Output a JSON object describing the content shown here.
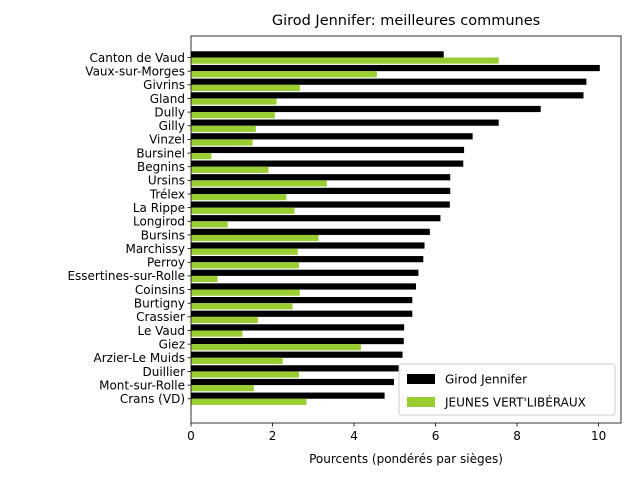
{
  "chart_data": {
    "type": "bar",
    "orientation": "horizontal",
    "title": "Girod Jennifer: meilleures communes",
    "xlabel": "Pourcents (pondérés par sièges)",
    "ylabel": "",
    "xlim": [
      0,
      10.55
    ],
    "xticks": [
      0,
      2,
      4,
      6,
      8,
      10
    ],
    "grid": false,
    "legend_position": "lower-right",
    "categories": [
      "Canton de Vaud",
      "Vaux-sur-Morges",
      "Givrins",
      "Gland",
      "Dully",
      "Gilly",
      "Vinzel",
      "Bursinel",
      "Begnins",
      "Ursins",
      "Trélex",
      "La Rippe",
      "Longirod",
      "Bursins",
      "Marchissy",
      "Perroy",
      "Essertines-sur-Rolle",
      "Coinsins",
      "Burtigny",
      "Crassier",
      "Le Vaud",
      "Giez",
      "Arzier-Le Muids",
      "Duillier",
      "Mont-sur-Rolle",
      "Crans (VD)"
    ],
    "series": [
      {
        "name": "Girod Jennifer",
        "color": "#000000",
        "values": [
          6.2,
          10.03,
          9.7,
          9.63,
          8.58,
          7.55,
          6.91,
          6.7,
          6.68,
          6.36,
          6.36,
          6.35,
          6.12,
          5.86,
          5.73,
          5.7,
          5.58,
          5.52,
          5.43,
          5.43,
          5.23,
          5.22,
          5.19,
          5.1,
          4.98,
          4.75
        ]
      },
      {
        "name": "JEUNES VERT'LIBÉRAUX",
        "color": "#9acd32",
        "values": [
          7.55,
          4.56,
          2.67,
          2.1,
          2.06,
          1.59,
          1.51,
          0.5,
          1.9,
          3.33,
          2.34,
          2.54,
          0.9,
          3.13,
          2.62,
          2.65,
          0.65,
          2.67,
          2.49,
          1.64,
          1.26,
          4.17,
          2.25,
          2.65,
          1.54,
          2.83
        ]
      }
    ]
  }
}
